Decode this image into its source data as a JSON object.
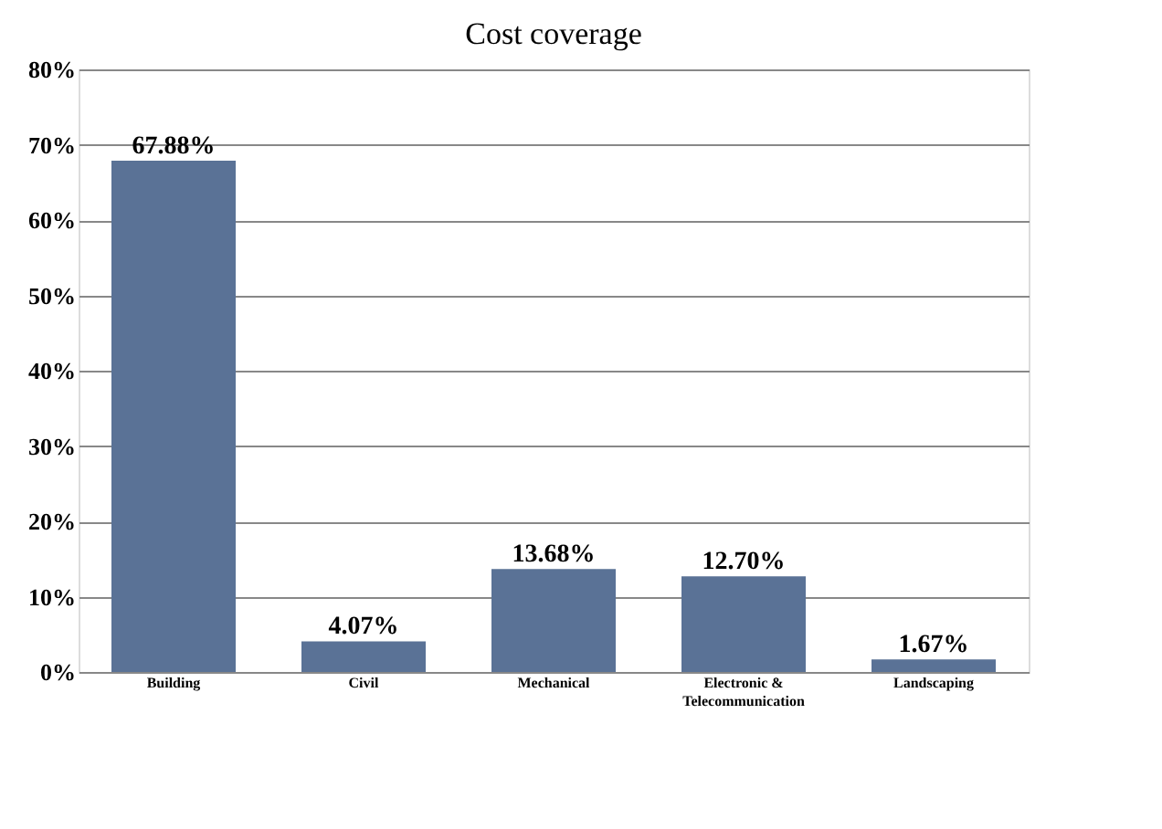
{
  "chart_data": {
    "type": "bar",
    "title": "Cost coverage",
    "categories": [
      "Building",
      "Civil",
      "Mechanical",
      "Electronic &\nTelecommunication",
      "Landscaping"
    ],
    "values": [
      67.88,
      4.07,
      13.68,
      12.7,
      1.67
    ],
    "value_labels": [
      "67.88%",
      "4.07%",
      "13.68%",
      "12.70%",
      "1.67%"
    ],
    "color": "#5a7296",
    "ylim": [
      0,
      80
    ],
    "yticks": [
      {
        "value": 0,
        "label": "0%"
      },
      {
        "value": 10,
        "label": "10%"
      },
      {
        "value": 20,
        "label": "20%"
      },
      {
        "value": 30,
        "label": "30%"
      },
      {
        "value": 40,
        "label": "40%"
      },
      {
        "value": 50,
        "label": "50%"
      },
      {
        "value": 60,
        "label": "60%"
      },
      {
        "value": 70,
        "label": "70%"
      },
      {
        "value": 80,
        "label": "80%"
      }
    ],
    "grid": "y"
  }
}
